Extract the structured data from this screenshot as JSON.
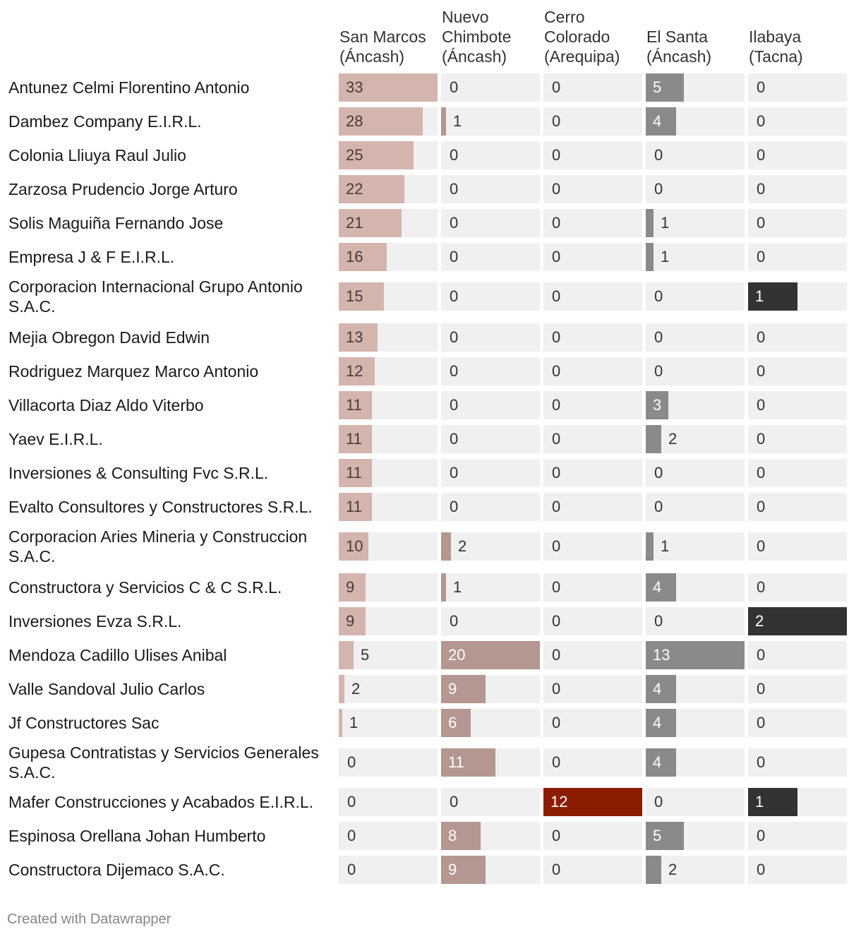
{
  "chart_data": {
    "type": "table",
    "columns": [
      {
        "name": "San Marcos\n(Áncash)",
        "color": "#d4b5ae",
        "max": 33
      },
      {
        "name": "Nuevo\nChimbote\n(Áncash)",
        "color": "#b39790",
        "max": 20
      },
      {
        "name": "Cerro\nColorado\n(Arequipa)",
        "color": "#8b1c00",
        "max": 12
      },
      {
        "name": "El Santa\n(Áncash)",
        "color": "#8a8a8a",
        "max": 13
      },
      {
        "name": "Ilabaya\n(Tacna)",
        "color": "#333333",
        "max": 2
      }
    ],
    "rows": [
      {
        "name": "Antunez Celmi Florentino Antonio",
        "values": [
          33,
          0,
          0,
          5,
          0
        ]
      },
      {
        "name": "Dambez Company E.I.R.L.",
        "values": [
          28,
          1,
          0,
          4,
          0
        ]
      },
      {
        "name": "Colonia Lliuya Raul Julio",
        "values": [
          25,
          0,
          0,
          0,
          0
        ]
      },
      {
        "name": "Zarzosa Prudencio Jorge Arturo",
        "values": [
          22,
          0,
          0,
          0,
          0
        ]
      },
      {
        "name": "Solis Maguiña Fernando Jose",
        "values": [
          21,
          0,
          0,
          1,
          0
        ]
      },
      {
        "name": "Empresa J & F E.I.R.L.",
        "values": [
          16,
          0,
          0,
          1,
          0
        ]
      },
      {
        "name": "Corporacion Internacional Grupo Antonio S.A.C.",
        "values": [
          15,
          0,
          0,
          0,
          1
        ]
      },
      {
        "name": "Mejia Obregon David Edwin",
        "values": [
          13,
          0,
          0,
          0,
          0
        ]
      },
      {
        "name": "Rodriguez Marquez Marco Antonio",
        "values": [
          12,
          0,
          0,
          0,
          0
        ]
      },
      {
        "name": "Villacorta Diaz Aldo Viterbo",
        "values": [
          11,
          0,
          0,
          3,
          0
        ]
      },
      {
        "name": "Yaev E.I.R.L.",
        "values": [
          11,
          0,
          0,
          2,
          0
        ]
      },
      {
        "name": "Inversiones & Consulting Fvc S.R.L.",
        "values": [
          11,
          0,
          0,
          0,
          0
        ]
      },
      {
        "name": "Evalto Consultores y Constructores S.R.L.",
        "values": [
          11,
          0,
          0,
          0,
          0
        ]
      },
      {
        "name": "Corporacion Aries Mineria y Construccion S.A.C.",
        "values": [
          10,
          2,
          0,
          1,
          0
        ]
      },
      {
        "name": "Constructora y Servicios C & C S.R.L.",
        "values": [
          9,
          1,
          0,
          4,
          0
        ]
      },
      {
        "name": "Inversiones Evza S.R.L.",
        "values": [
          9,
          0,
          0,
          0,
          2
        ]
      },
      {
        "name": "Mendoza Cadillo Ulises Anibal",
        "values": [
          5,
          20,
          0,
          13,
          0
        ]
      },
      {
        "name": "Valle Sandoval Julio Carlos",
        "values": [
          2,
          9,
          0,
          4,
          0
        ]
      },
      {
        "name": "Jf Constructores Sac",
        "values": [
          1,
          6,
          0,
          4,
          0
        ]
      },
      {
        "name": "Gupesa Contratistas y Servicios Generales S.A.C.",
        "values": [
          0,
          11,
          0,
          4,
          0
        ]
      },
      {
        "name": "Mafer Construcciones y Acabados E.I.R.L.",
        "values": [
          0,
          0,
          12,
          0,
          1
        ]
      },
      {
        "name": "Espinosa Orellana Johan Humberto",
        "values": [
          0,
          8,
          0,
          5,
          0
        ]
      },
      {
        "name": "Constructora Dijemaco S.A.C.",
        "values": [
          0,
          9,
          0,
          2,
          0
        ]
      }
    ]
  },
  "footer": "Created with Datawrapper"
}
